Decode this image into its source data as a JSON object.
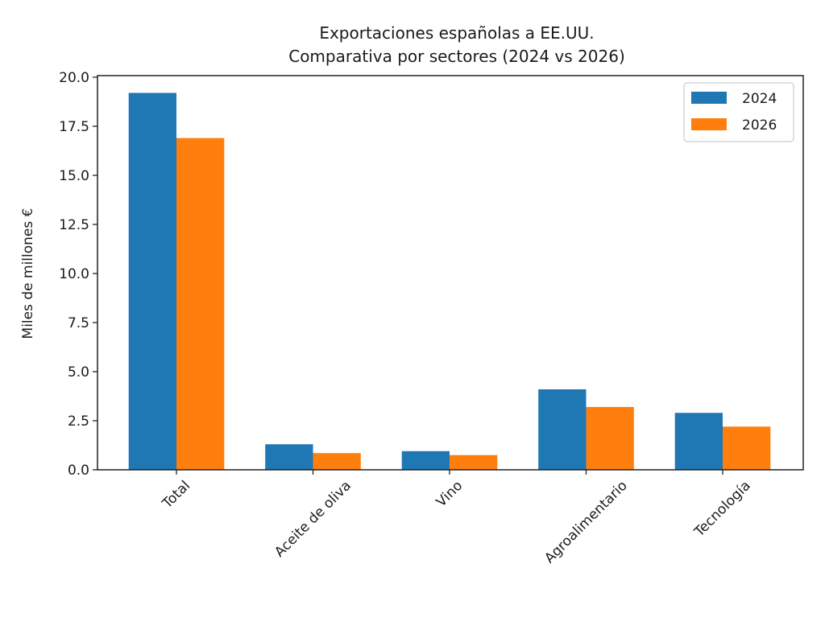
{
  "chart_data": {
    "type": "bar",
    "title": "Exportaciones españolas a EE.UU.\nComparativa por sectores (2024 vs 2026)",
    "title_lines": [
      "Exportaciones españolas a EE.UU.",
      "Comparativa por sectores (2024 vs 2026)"
    ],
    "xlabel": "",
    "ylabel": "Miles de millones €",
    "categories": [
      "Total",
      "Aceite de oliva",
      "Vino",
      "Agroalimentario",
      "Tecnología"
    ],
    "series": [
      {
        "name": "2024",
        "color": "#1f77b4",
        "values": [
          19.2,
          1.3,
          0.95,
          4.1,
          2.9
        ]
      },
      {
        "name": "2026",
        "color": "#ff7f0e",
        "values": [
          16.9,
          0.85,
          0.75,
          3.2,
          2.2
        ]
      }
    ],
    "ylim": [
      0,
      20.08
    ],
    "yticks": [
      0.0,
      2.5,
      5.0,
      7.5,
      10.0,
      12.5,
      15.0,
      17.5,
      20.0
    ],
    "ytick_labels": [
      "0.0",
      "2.5",
      "5.0",
      "7.5",
      "10.0",
      "12.5",
      "15.0",
      "17.5",
      "20.0"
    ],
    "xtick_rotation": 45,
    "grid": false,
    "legend_position": "top-right"
  }
}
